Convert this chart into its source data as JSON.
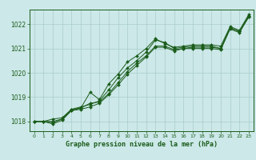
{
  "title": "Graphe pression niveau de la mer (hPa)",
  "bg_color": "#cce8e8",
  "grid_color": "#aacccc",
  "line_color": "#1a5c1a",
  "marker_color": "#1a5c1a",
  "xlim": [
    -0.5,
    23.5
  ],
  "ylim": [
    1017.6,
    1022.6
  ],
  "yticks": [
    1018,
    1019,
    1020,
    1021,
    1022
  ],
  "xticks": [
    0,
    1,
    2,
    3,
    4,
    5,
    6,
    7,
    8,
    9,
    10,
    11,
    12,
    13,
    14,
    15,
    16,
    17,
    18,
    19,
    20,
    21,
    22,
    23
  ],
  "series": [
    [
      1018.0,
      1018.0,
      1018.0,
      1018.1,
      1018.5,
      1018.6,
      1018.7,
      1018.85,
      1019.3,
      1019.8,
      1020.2,
      1020.5,
      1020.85,
      1021.35,
      1021.25,
      1021.0,
      1021.05,
      1021.1,
      1021.1,
      1021.1,
      1021.0,
      1021.85,
      1021.7,
      1022.35
    ],
    [
      1018.0,
      1018.0,
      1017.95,
      1018.1,
      1018.45,
      1018.55,
      1018.75,
      1018.8,
      1019.15,
      1019.6,
      1020.05,
      1020.4,
      1020.7,
      1021.1,
      1021.1,
      1020.95,
      1021.0,
      1021.05,
      1021.05,
      1021.05,
      1021.0,
      1021.85,
      1021.7,
      1022.3
    ],
    [
      1018.0,
      1018.0,
      1017.9,
      1018.05,
      1018.45,
      1018.5,
      1018.6,
      1018.75,
      1019.1,
      1019.5,
      1019.95,
      1020.3,
      1020.65,
      1021.05,
      1021.05,
      1020.9,
      1021.0,
      1021.0,
      1021.0,
      1021.0,
      1020.95,
      1021.8,
      1021.65,
      1022.3
    ],
    [
      1018.0,
      1018.0,
      1018.1,
      1018.15,
      1018.5,
      1018.55,
      1019.2,
      1018.9,
      1019.55,
      1019.95,
      1020.45,
      1020.7,
      1021.0,
      1021.4,
      1021.2,
      1021.05,
      1021.1,
      1021.15,
      1021.15,
      1021.15,
      1021.1,
      1021.9,
      1021.75,
      1022.4
    ]
  ]
}
